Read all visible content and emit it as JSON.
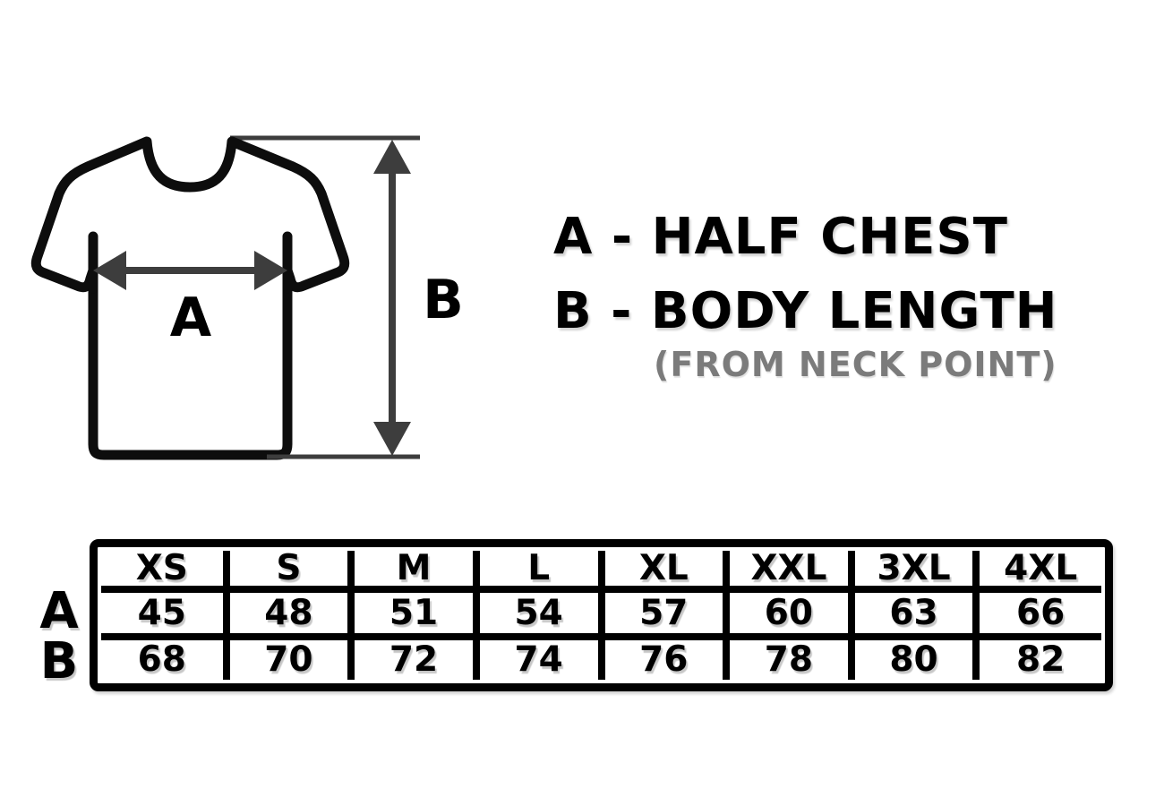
{
  "colors": {
    "ink": "#000000",
    "arrow_gray": "#3d3d3d",
    "note_gray": "#7b7b7b",
    "background": "#ffffff"
  },
  "diagram": {
    "width_label": "A",
    "height_label": "B"
  },
  "legend": {
    "line_a": "A - HALF CHEST",
    "line_b": "B - BODY LENGTH",
    "note": "(FROM NECK POINT)"
  },
  "chart_data": {
    "type": "table",
    "columns": [
      "XS",
      "S",
      "M",
      "L",
      "XL",
      "XXL",
      "3XL",
      "4XL"
    ],
    "rows": [
      {
        "label": "A",
        "measurement": "HALF CHEST",
        "values": [
          "45",
          "48",
          "51",
          "54",
          "57",
          "60",
          "63",
          "66"
        ]
      },
      {
        "label": "B",
        "measurement": "BODY LENGTH (FROM NECK POINT)",
        "values": [
          "68",
          "70",
          "72",
          "74",
          "76",
          "78",
          "80",
          "82"
        ]
      }
    ]
  }
}
